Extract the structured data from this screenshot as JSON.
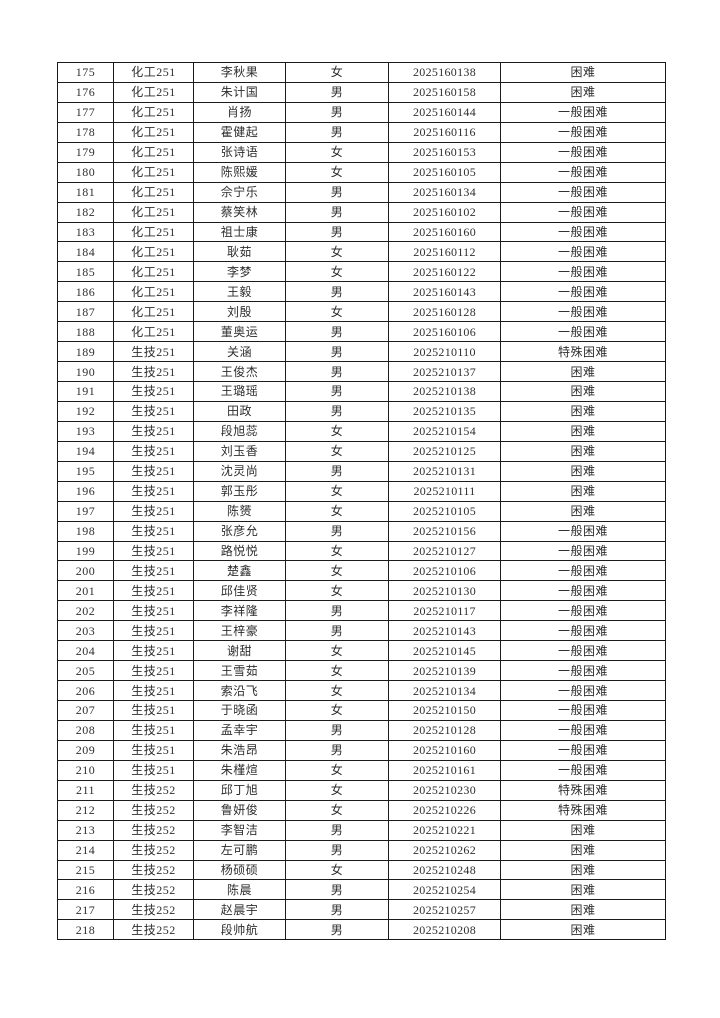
{
  "page": {
    "background": "#ffffff",
    "border_color": "#1b1b1b",
    "text_color": "#2e2e2e"
  },
  "table": {
    "rows": [
      [
        "175",
        "化工251",
        "李秋果",
        "女",
        "2025160138",
        "困难"
      ],
      [
        "176",
        "化工251",
        "朱计国",
        "男",
        "2025160158",
        "困难"
      ],
      [
        "177",
        "化工251",
        "肖扬",
        "男",
        "2025160144",
        "一般困难"
      ],
      [
        "178",
        "化工251",
        "霍健起",
        "男",
        "2025160116",
        "一般困难"
      ],
      [
        "179",
        "化工251",
        "张诗语",
        "女",
        "2025160153",
        "一般困难"
      ],
      [
        "180",
        "化工251",
        "陈熙媛",
        "女",
        "2025160105",
        "一般困难"
      ],
      [
        "181",
        "化工251",
        "佘宁乐",
        "男",
        "2025160134",
        "一般困难"
      ],
      [
        "182",
        "化工251",
        "蔡笑林",
        "男",
        "2025160102",
        "一般困难"
      ],
      [
        "183",
        "化工251",
        "祖士康",
        "男",
        "2025160160",
        "一般困难"
      ],
      [
        "184",
        "化工251",
        "耿茹",
        "女",
        "2025160112",
        "一般困难"
      ],
      [
        "185",
        "化工251",
        "李梦",
        "女",
        "2025160122",
        "一般困难"
      ],
      [
        "186",
        "化工251",
        "王毅",
        "男",
        "2025160143",
        "一般困难"
      ],
      [
        "187",
        "化工251",
        "刘殷",
        "女",
        "2025160128",
        "一般困难"
      ],
      [
        "188",
        "化工251",
        "董奥运",
        "男",
        "2025160106",
        "一般困难"
      ],
      [
        "189",
        "生技251",
        "关涵",
        "男",
        "2025210110",
        "特殊困难"
      ],
      [
        "190",
        "生技251",
        "王俊杰",
        "男",
        "2025210137",
        "困难"
      ],
      [
        "191",
        "生技251",
        "王璐瑶",
        "男",
        "2025210138",
        "困难"
      ],
      [
        "192",
        "生技251",
        "田政",
        "男",
        "2025210135",
        "困难"
      ],
      [
        "193",
        "生技251",
        "段旭蕊",
        "女",
        "2025210154",
        "困难"
      ],
      [
        "194",
        "生技251",
        "刘玉香",
        "女",
        "2025210125",
        "困难"
      ],
      [
        "195",
        "生技251",
        "沈灵尚",
        "男",
        "2025210131",
        "困难"
      ],
      [
        "196",
        "生技251",
        "郭玉彤",
        "女",
        "2025210111",
        "困难"
      ],
      [
        "197",
        "生技251",
        "陈赟",
        "女",
        "2025210105",
        "困难"
      ],
      [
        "198",
        "生技251",
        "张彦允",
        "男",
        "2025210156",
        "一般困难"
      ],
      [
        "199",
        "生技251",
        "路悦悦",
        "女",
        "2025210127",
        "一般困难"
      ],
      [
        "200",
        "生技251",
        "楚鑫",
        "女",
        "2025210106",
        "一般困难"
      ],
      [
        "201",
        "生技251",
        "邱佳贤",
        "女",
        "2025210130",
        "一般困难"
      ],
      [
        "202",
        "生技251",
        "李祥隆",
        "男",
        "2025210117",
        "一般困难"
      ],
      [
        "203",
        "生技251",
        "王梓豪",
        "男",
        "2025210143",
        "一般困难"
      ],
      [
        "204",
        "生技251",
        "谢甜",
        "女",
        "2025210145",
        "一般困难"
      ],
      [
        "205",
        "生技251",
        "王雪茹",
        "女",
        "2025210139",
        "一般困难"
      ],
      [
        "206",
        "生技251",
        "索沿飞",
        "女",
        "2025210134",
        "一般困难"
      ],
      [
        "207",
        "生技251",
        "于晓函",
        "女",
        "2025210150",
        "一般困难"
      ],
      [
        "208",
        "生技251",
        "孟幸宇",
        "男",
        "2025210128",
        "一般困难"
      ],
      [
        "209",
        "生技251",
        "朱浩昂",
        "男",
        "2025210160",
        "一般困难"
      ],
      [
        "210",
        "生技251",
        "朱槿煊",
        "女",
        "2025210161",
        "一般困难"
      ],
      [
        "211",
        "生技252",
        "邱丁旭",
        "女",
        "2025210230",
        "特殊困难"
      ],
      [
        "212",
        "生技252",
        "鲁妍俊",
        "女",
        "2025210226",
        "特殊困难"
      ],
      [
        "213",
        "生技252",
        "李智洁",
        "男",
        "2025210221",
        "困难"
      ],
      [
        "214",
        "生技252",
        "左可鹏",
        "男",
        "2025210262",
        "困难"
      ],
      [
        "215",
        "生技252",
        "杨硕硕",
        "女",
        "2025210248",
        "困难"
      ],
      [
        "216",
        "生技252",
        "陈晨",
        "男",
        "2025210254",
        "困难"
      ],
      [
        "217",
        "生技252",
        "赵晨宇",
        "男",
        "2025210257",
        "困难"
      ],
      [
        "218",
        "生技252",
        "段帅航",
        "男",
        "2025210208",
        "困难"
      ]
    ]
  }
}
